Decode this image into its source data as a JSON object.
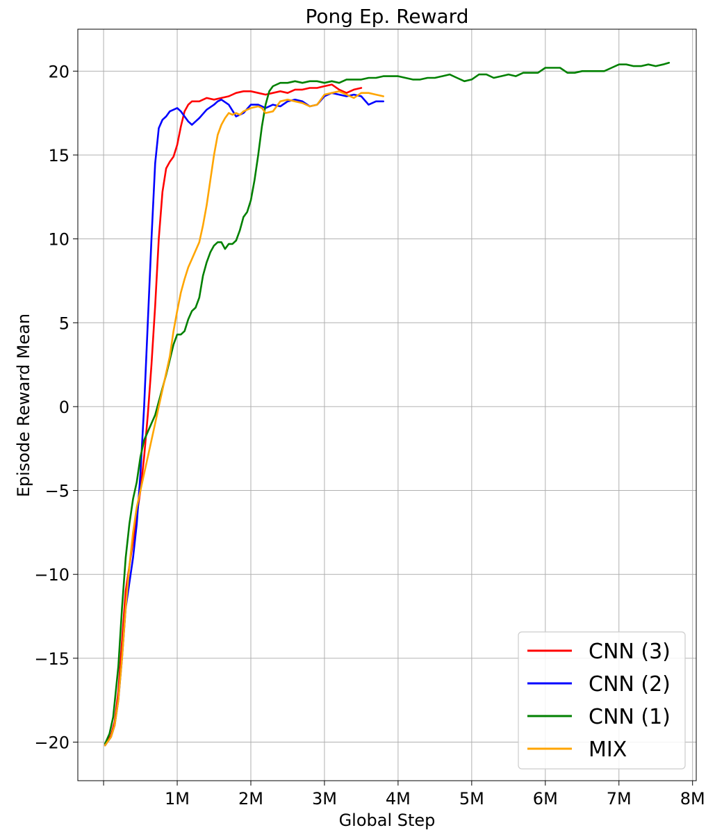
{
  "chart_data": {
    "type": "line",
    "title": "Pong Ep. Reward",
    "xlabel": "Global Step",
    "ylabel": "Episode Reward Mean",
    "xlim": [
      -350000,
      8050000
    ],
    "ylim": [
      -22.3,
      22.5
    ],
    "grid": true,
    "legend_position": "lower-right",
    "x_ticks": [
      {
        "value": 0,
        "label": ""
      },
      {
        "value": 1000000,
        "label": "1M"
      },
      {
        "value": 2000000,
        "label": "2M"
      },
      {
        "value": 3000000,
        "label": "3M"
      },
      {
        "value": 4000000,
        "label": "4M"
      },
      {
        "value": 5000000,
        "label": "5M"
      },
      {
        "value": 6000000,
        "label": "6M"
      },
      {
        "value": 7000000,
        "label": "7M"
      },
      {
        "value": 8000000,
        "label": "8M"
      }
    ],
    "y_ticks": [
      {
        "value": 20,
        "label": "20"
      },
      {
        "value": 15,
        "label": "15"
      },
      {
        "value": 10,
        "label": "10"
      },
      {
        "value": 5,
        "label": "5"
      },
      {
        "value": 0,
        "label": "0"
      },
      {
        "value": -5,
        "label": "−5"
      },
      {
        "value": -10,
        "label": "−10"
      },
      {
        "value": -15,
        "label": "−15"
      },
      {
        "value": -20,
        "label": "−20"
      }
    ],
    "series": [
      {
        "name": "CNN (3)",
        "color": "#ff0000",
        "points": [
          [
            20000,
            -20.1
          ],
          [
            100000,
            -19.6
          ],
          [
            150000,
            -18.8
          ],
          [
            200000,
            -17
          ],
          [
            250000,
            -14
          ],
          [
            300000,
            -11
          ],
          [
            400000,
            -8
          ],
          [
            500000,
            -5
          ],
          [
            550000,
            -3
          ],
          [
            600000,
            -0.5
          ],
          [
            650000,
            2.5
          ],
          [
            700000,
            6
          ],
          [
            750000,
            10
          ],
          [
            800000,
            12.8
          ],
          [
            850000,
            14.2
          ],
          [
            900000,
            14.6
          ],
          [
            950000,
            14.9
          ],
          [
            1000000,
            15.6
          ],
          [
            1050000,
            16.7
          ],
          [
            1100000,
            17.6
          ],
          [
            1150000,
            18
          ],
          [
            1200000,
            18.2
          ],
          [
            1300000,
            18.2
          ],
          [
            1400000,
            18.4
          ],
          [
            1500000,
            18.3
          ],
          [
            1600000,
            18.4
          ],
          [
            1700000,
            18.5
          ],
          [
            1800000,
            18.7
          ],
          [
            1900000,
            18.8
          ],
          [
            2000000,
            18.8
          ],
          [
            2100000,
            18.7
          ],
          [
            2200000,
            18.6
          ],
          [
            2300000,
            18.7
          ],
          [
            2400000,
            18.8
          ],
          [
            2500000,
            18.7
          ],
          [
            2600000,
            18.9
          ],
          [
            2700000,
            18.9
          ],
          [
            2800000,
            19
          ],
          [
            2900000,
            19
          ],
          [
            3000000,
            19.1
          ],
          [
            3100000,
            19.2
          ],
          [
            3200000,
            18.9
          ],
          [
            3300000,
            18.7
          ],
          [
            3400000,
            18.9
          ],
          [
            3500000,
            19
          ]
        ]
      },
      {
        "name": "CNN (2)",
        "color": "#0000ff",
        "points": [
          [
            20000,
            -20.2
          ],
          [
            100000,
            -19.7
          ],
          [
            150000,
            -19
          ],
          [
            200000,
            -17.5
          ],
          [
            250000,
            -15
          ],
          [
            300000,
            -12
          ],
          [
            400000,
            -9
          ],
          [
            450000,
            -7
          ],
          [
            500000,
            -4
          ],
          [
            550000,
            0
          ],
          [
            600000,
            5
          ],
          [
            650000,
            10
          ],
          [
            700000,
            14.5
          ],
          [
            750000,
            16.6
          ],
          [
            800000,
            17.1
          ],
          [
            850000,
            17.3
          ],
          [
            900000,
            17.6
          ],
          [
            950000,
            17.7
          ],
          [
            1000000,
            17.8
          ],
          [
            1050000,
            17.6
          ],
          [
            1100000,
            17.3
          ],
          [
            1150000,
            17
          ],
          [
            1200000,
            16.8
          ],
          [
            1250000,
            17
          ],
          [
            1300000,
            17.2
          ],
          [
            1400000,
            17.7
          ],
          [
            1500000,
            18
          ],
          [
            1550000,
            18.2
          ],
          [
            1600000,
            18.3
          ],
          [
            1700000,
            18
          ],
          [
            1800000,
            17.3
          ],
          [
            1900000,
            17.5
          ],
          [
            2000000,
            18
          ],
          [
            2100000,
            18
          ],
          [
            2200000,
            17.8
          ],
          [
            2300000,
            18
          ],
          [
            2400000,
            17.9
          ],
          [
            2500000,
            18.2
          ],
          [
            2600000,
            18.3
          ],
          [
            2700000,
            18.2
          ],
          [
            2800000,
            17.9
          ],
          [
            2900000,
            18
          ],
          [
            3000000,
            18.5
          ],
          [
            3100000,
            18.7
          ],
          [
            3200000,
            18.6
          ],
          [
            3300000,
            18.5
          ],
          [
            3400000,
            18.6
          ],
          [
            3500000,
            18.5
          ],
          [
            3600000,
            18
          ],
          [
            3700000,
            18.2
          ],
          [
            3800000,
            18.2
          ]
        ]
      },
      {
        "name": "CNN (1)",
        "color": "#008000",
        "points": [
          [
            20000,
            -20.1
          ],
          [
            80000,
            -19.5
          ],
          [
            130000,
            -18.5
          ],
          [
            200000,
            -15.5
          ],
          [
            250000,
            -12
          ],
          [
            300000,
            -9
          ],
          [
            350000,
            -7
          ],
          [
            400000,
            -5.5
          ],
          [
            450000,
            -4.5
          ],
          [
            500000,
            -3
          ],
          [
            550000,
            -2
          ],
          [
            600000,
            -1.5
          ],
          [
            650000,
            -1
          ],
          [
            700000,
            -0.5
          ],
          [
            750000,
            0.3
          ],
          [
            800000,
            1.1
          ],
          [
            850000,
            1.9
          ],
          [
            900000,
            2.8
          ],
          [
            950000,
            3.7
          ],
          [
            1000000,
            4.3
          ],
          [
            1050000,
            4.3
          ],
          [
            1100000,
            4.5
          ],
          [
            1150000,
            5.2
          ],
          [
            1200000,
            5.7
          ],
          [
            1250000,
            5.9
          ],
          [
            1300000,
            6.5
          ],
          [
            1350000,
            7.8
          ],
          [
            1400000,
            8.6
          ],
          [
            1450000,
            9.2
          ],
          [
            1500000,
            9.6
          ],
          [
            1550000,
            9.8
          ],
          [
            1600000,
            9.8
          ],
          [
            1650000,
            9.4
          ],
          [
            1700000,
            9.7
          ],
          [
            1750000,
            9.7
          ],
          [
            1800000,
            9.9
          ],
          [
            1850000,
            10.5
          ],
          [
            1900000,
            11.3
          ],
          [
            1950000,
            11.6
          ],
          [
            2000000,
            12.3
          ],
          [
            2050000,
            13.5
          ],
          [
            2100000,
            15
          ],
          [
            2150000,
            16.7
          ],
          [
            2200000,
            18
          ],
          [
            2250000,
            18.8
          ],
          [
            2300000,
            19.1
          ],
          [
            2400000,
            19.3
          ],
          [
            2500000,
            19.3
          ],
          [
            2600000,
            19.4
          ],
          [
            2700000,
            19.3
          ],
          [
            2800000,
            19.4
          ],
          [
            2900000,
            19.4
          ],
          [
            3000000,
            19.3
          ],
          [
            3100000,
            19.4
          ],
          [
            3200000,
            19.3
          ],
          [
            3300000,
            19.5
          ],
          [
            3400000,
            19.5
          ],
          [
            3500000,
            19.5
          ],
          [
            3600000,
            19.6
          ],
          [
            3700000,
            19.6
          ],
          [
            3800000,
            19.7
          ],
          [
            3900000,
            19.7
          ],
          [
            4000000,
            19.7
          ],
          [
            4100000,
            19.6
          ],
          [
            4200000,
            19.5
          ],
          [
            4300000,
            19.5
          ],
          [
            4400000,
            19.6
          ],
          [
            4500000,
            19.6
          ],
          [
            4600000,
            19.7
          ],
          [
            4700000,
            19.8
          ],
          [
            4800000,
            19.6
          ],
          [
            4900000,
            19.4
          ],
          [
            5000000,
            19.5
          ],
          [
            5100000,
            19.8
          ],
          [
            5200000,
            19.8
          ],
          [
            5300000,
            19.6
          ],
          [
            5400000,
            19.7
          ],
          [
            5500000,
            19.8
          ],
          [
            5600000,
            19.7
          ],
          [
            5700000,
            19.9
          ],
          [
            5800000,
            19.9
          ],
          [
            5900000,
            19.9
          ],
          [
            6000000,
            20.2
          ],
          [
            6100000,
            20.2
          ],
          [
            6200000,
            20.2
          ],
          [
            6300000,
            19.9
          ],
          [
            6400000,
            19.9
          ],
          [
            6500000,
            20
          ],
          [
            6600000,
            20
          ],
          [
            6700000,
            20
          ],
          [
            6800000,
            20
          ],
          [
            6900000,
            20.2
          ],
          [
            7000000,
            20.4
          ],
          [
            7100000,
            20.4
          ],
          [
            7200000,
            20.3
          ],
          [
            7300000,
            20.3
          ],
          [
            7400000,
            20.4
          ],
          [
            7500000,
            20.3
          ],
          [
            7600000,
            20.4
          ],
          [
            7680000,
            20.5
          ]
        ]
      },
      {
        "name": "MIX",
        "color": "#ffa500",
        "points": [
          [
            20000,
            -20.2
          ],
          [
            100000,
            -19.7
          ],
          [
            150000,
            -19
          ],
          [
            200000,
            -17.5
          ],
          [
            250000,
            -15
          ],
          [
            300000,
            -12
          ],
          [
            350000,
            -9.5
          ],
          [
            400000,
            -7.5
          ],
          [
            450000,
            -6
          ],
          [
            500000,
            -5
          ],
          [
            550000,
            -4
          ],
          [
            600000,
            -3
          ],
          [
            650000,
            -2
          ],
          [
            700000,
            -1
          ],
          [
            750000,
            0
          ],
          [
            800000,
            1
          ],
          [
            850000,
            2
          ],
          [
            900000,
            3
          ],
          [
            950000,
            4.5
          ],
          [
            1000000,
            5.7
          ],
          [
            1050000,
            6.8
          ],
          [
            1100000,
            7.6
          ],
          [
            1150000,
            8.3
          ],
          [
            1200000,
            8.8
          ],
          [
            1250000,
            9.3
          ],
          [
            1300000,
            9.8
          ],
          [
            1350000,
            10.8
          ],
          [
            1400000,
            12
          ],
          [
            1450000,
            13.5
          ],
          [
            1500000,
            15
          ],
          [
            1550000,
            16.2
          ],
          [
            1600000,
            16.8
          ],
          [
            1650000,
            17.2
          ],
          [
            1700000,
            17.5
          ],
          [
            1750000,
            17.4
          ],
          [
            1800000,
            17.5
          ],
          [
            1850000,
            17.4
          ],
          [
            1900000,
            17.6
          ],
          [
            1950000,
            17.7
          ],
          [
            2000000,
            17.8
          ],
          [
            2100000,
            17.9
          ],
          [
            2150000,
            17.8
          ],
          [
            2200000,
            17.5
          ],
          [
            2300000,
            17.6
          ],
          [
            2400000,
            18.2
          ],
          [
            2500000,
            18.3
          ],
          [
            2600000,
            18.2
          ],
          [
            2700000,
            18.1
          ],
          [
            2800000,
            17.9
          ],
          [
            2900000,
            18
          ],
          [
            3000000,
            18.6
          ],
          [
            3100000,
            18.7
          ],
          [
            3200000,
            18.8
          ],
          [
            3300000,
            18.6
          ],
          [
            3400000,
            18.4
          ],
          [
            3500000,
            18.7
          ],
          [
            3600000,
            18.7
          ],
          [
            3700000,
            18.6
          ],
          [
            3800000,
            18.5
          ]
        ]
      }
    ]
  }
}
